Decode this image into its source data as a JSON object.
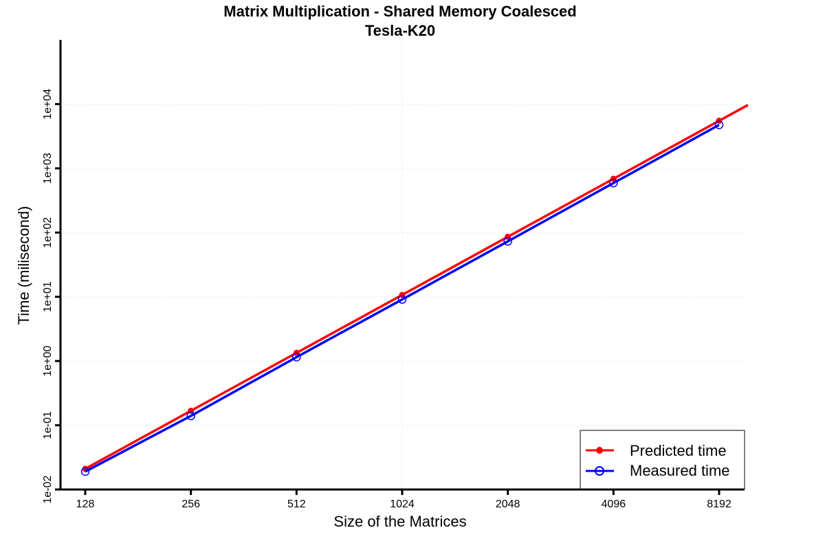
{
  "chart_data": {
    "type": "line",
    "title": "Matrix Multiplication - Shared Memory Coalesced",
    "subtitle": "Tesla-K20",
    "xlabel": "Size of the Matrices",
    "ylabel": "Time (milisecond)",
    "x_scale": "log2",
    "y_scale": "log10",
    "xlim": [
      128,
      8192
    ],
    "ylim": [
      0.01,
      100000
    ],
    "x": [
      128,
      256,
      512,
      1024,
      2048,
      4096,
      8192
    ],
    "x_tick_labels": [
      "128",
      "256",
      "512",
      "1024",
      "2048",
      "4096",
      "8192"
    ],
    "y_ticks": [
      0.01,
      0.1,
      1,
      10,
      100,
      1000,
      10000
    ],
    "y_tick_labels": [
      "1e-02",
      "1e-01",
      "1e+00",
      "1e+01",
      "1e+02",
      "1e+03",
      "1e+04"
    ],
    "grid": true,
    "legend_position": "bottom-right",
    "series": [
      {
        "name": "Predicted time",
        "color": "#ff0000",
        "marker": "filled-circle",
        "values": [
          0.021,
          0.168,
          1.34,
          10.7,
          86,
          688,
          5500
        ],
        "extends_to": 9700
      },
      {
        "name": "Measured time",
        "color": "#0000ff",
        "marker": "open-circle",
        "values": [
          0.019,
          0.14,
          1.15,
          9.1,
          73,
          590,
          4750
        ]
      }
    ]
  }
}
